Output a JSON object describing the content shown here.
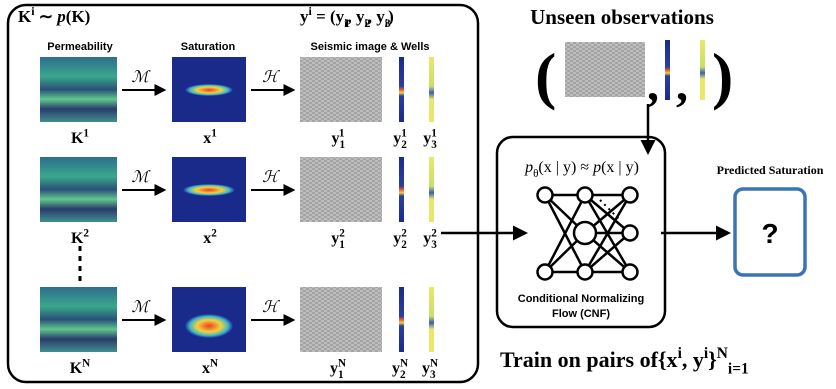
{
  "prior": [
    "K",
    "i",
    " ∼ ",
    "p",
    "(K)"
  ],
  "target": [
    "y",
    "i",
    " = (",
    "y",
    "1",
    "i",
    ", ",
    "y",
    "2",
    "i",
    ", ",
    "y",
    "3",
    "i",
    ")"
  ],
  "columns": {
    "permeability": "Permeability",
    "saturation": "Saturation",
    "seismic": "Seismic image & Wells"
  },
  "rows": [
    {
      "forward": "ℳ",
      "observe": "ℋ",
      "perm": [
        "K",
        "1"
      ],
      "sat": [
        "x",
        "1"
      ],
      "seis": [
        "y",
        "1",
        "1"
      ],
      "well2": [
        "y",
        "2",
        "1"
      ],
      "well3": [
        "y",
        "3",
        "1"
      ]
    },
    {
      "forward": "ℳ",
      "observe": "ℋ",
      "perm": [
        "K",
        "2"
      ],
      "sat": [
        "x",
        "2"
      ],
      "seis": [
        "y",
        "1",
        "2"
      ],
      "well2": [
        "y",
        "2",
        "2"
      ],
      "well3": [
        "y",
        "3",
        "2"
      ]
    },
    {
      "forward": "ℳ",
      "observe": "ℋ",
      "perm": [
        "K",
        "N"
      ],
      "sat": [
        "x",
        "N"
      ],
      "seis": [
        "y",
        "1",
        "N"
      ],
      "well2": [
        "y",
        "2",
        "N"
      ],
      "well3": [
        "y",
        "3",
        "N"
      ]
    }
  ],
  "unseen": {
    "title": "Unseen observations",
    "open": "(",
    "comma": ",",
    "close": ")"
  },
  "cnf": {
    "posterior": [
      "p",
      "θ",
      "(x | y) ≈ ",
      "p",
      "(x | y)"
    ],
    "name": [
      "Conditional Normalizing",
      "Flow (CNF)"
    ]
  },
  "prediction": {
    "title": "Predicted Saturation",
    "mark": "?"
  },
  "train": [
    "Train on pairs of",
    "{x",
    "i",
    ", y",
    "i",
    "}",
    "N",
    "i=1"
  ]
}
